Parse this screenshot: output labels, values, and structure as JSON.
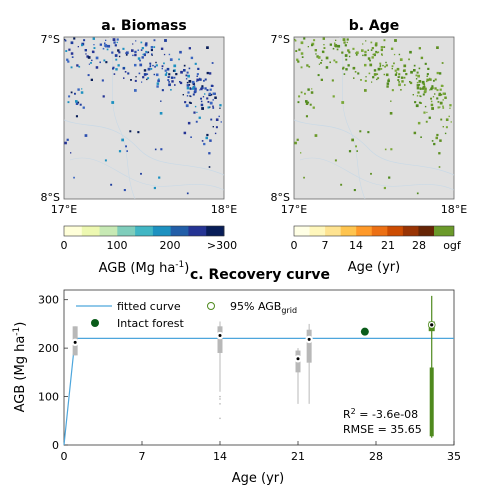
{
  "panel_a": {
    "title": "a. Biomass",
    "lat_top": "7°S",
    "lat_bottom": "8°S",
    "lon_left": "17°E",
    "lon_right": "18°E",
    "cbar_ticks": [
      "0",
      "100",
      "200",
      ">300"
    ],
    "cbar_label_main": "AGB (Mg ha",
    "cbar_label_sup": "-1",
    "cbar_label_end": ")",
    "cbar_colors": [
      "#ffffd9",
      "#edf8b1",
      "#c7e9b4",
      "#7fcdbb",
      "#41b6c4",
      "#1d91c0",
      "#225ea8",
      "#253494",
      "#081d58"
    ]
  },
  "panel_b": {
    "title": "b. Age",
    "lat_top": "7°S",
    "lat_bottom": "8°S",
    "lon_left": "17°E",
    "lon_right": "18°E",
    "cbar_ticks": [
      "0",
      "7",
      "14",
      "21",
      "28",
      "ogf"
    ],
    "cbar_label": "Age (yr)",
    "cbar_colors": [
      "#ffffe5",
      "#fff7bc",
      "#fee391",
      "#fec44f",
      "#fe9929",
      "#ec7014",
      "#cc4c02",
      "#993404",
      "#662506"
    ],
    "ogf_color": "#6b9a2a"
  },
  "chart_data": {
    "type": "scatter",
    "title": "c. Recovery curve",
    "xlabel": "Age (yr)",
    "ylabel_main": "AGB (Mg ha",
    "ylabel_sup": "-1",
    "ylabel_end": ")",
    "xlim": [
      0,
      35
    ],
    "ylim": [
      0,
      320
    ],
    "xticks": [
      0,
      7,
      14,
      21,
      28,
      35
    ],
    "yticks": [
      0,
      100,
      200,
      300
    ],
    "fitted_curve": {
      "name": "fitted curve",
      "color": "#4da6dc",
      "x": [
        0,
        1,
        35
      ],
      "y": [
        0,
        220,
        220
      ]
    },
    "grid_boxes": {
      "name_main": "95% AGB",
      "name_sub": "grid",
      "color": "#b8b8b8",
      "items": [
        {
          "x": 1,
          "median": 212,
          "q1": 185,
          "q3": 245,
          "lo": 185,
          "hi": 245,
          "outliers": []
        },
        {
          "x": 14,
          "median": 226,
          "q1": 190,
          "q3": 245,
          "lo": 110,
          "hi": 255,
          "outliers": [
            100,
            95,
            85,
            55
          ]
        },
        {
          "x": 21,
          "median": 178,
          "q1": 150,
          "q3": 195,
          "lo": 85,
          "hi": 200,
          "outliers": []
        },
        {
          "x": 22,
          "median": 218,
          "q1": 170,
          "q3": 238,
          "lo": 85,
          "hi": 250,
          "outliers": []
        }
      ]
    },
    "ogf_box": {
      "x": 33,
      "median": 248,
      "q1": 235,
      "q3": 255,
      "lo": 15,
      "hi": 308,
      "dense_low": 18,
      "dense_high": 160,
      "color": "#4f8a1e"
    },
    "intact_forest": {
      "name": "Intact forest",
      "x": 27,
      "y": 234,
      "color": "#0a5c1a"
    },
    "stats": {
      "r2_main": "R",
      "r2_sup": "2",
      "r2_value": " = -3.6e-08",
      "rmse": "RMSE = 35.65"
    }
  }
}
